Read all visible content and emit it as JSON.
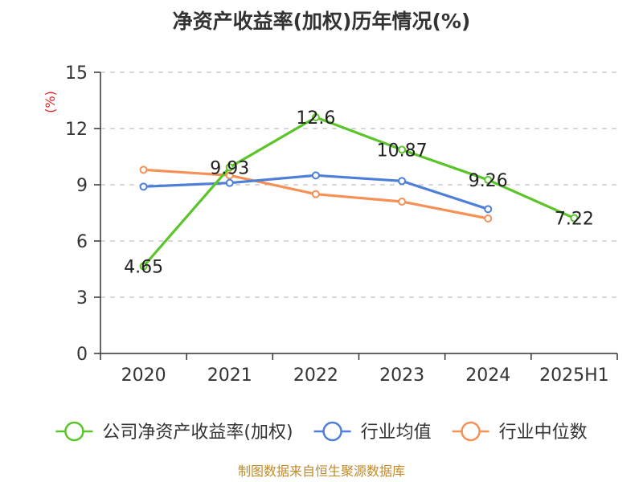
{
  "chart_data": {
    "type": "line",
    "title": "净资产收益率(加权)历年情况(%)",
    "ylabel": "(%)",
    "xlabel": "",
    "categories": [
      "2020",
      "2021",
      "2022",
      "2023",
      "2024",
      "2025H1"
    ],
    "ylim": [
      0,
      15
    ],
    "yticks": [
      0,
      3,
      6,
      9,
      12,
      15
    ],
    "grid": true,
    "legend_position": "bottom",
    "series": [
      {
        "name": "公司净资产收益率(加权)",
        "color": "#5bc42a",
        "values": [
          4.65,
          9.93,
          12.6,
          10.87,
          9.26,
          7.22
        ],
        "labels": [
          "4.65",
          "9.93",
          "12.6",
          "10.87",
          "9.26",
          "7.22"
        ]
      },
      {
        "name": "行业均值",
        "color": "#4e7fd8",
        "values": [
          8.9,
          9.1,
          9.5,
          9.2,
          7.7,
          null
        ]
      },
      {
        "name": "行业中位数",
        "color": "#f59157",
        "values": [
          9.8,
          9.5,
          8.5,
          8.1,
          7.2,
          null
        ]
      }
    ]
  },
  "footer": {
    "source": "制图数据来自恒生聚源数据库"
  }
}
